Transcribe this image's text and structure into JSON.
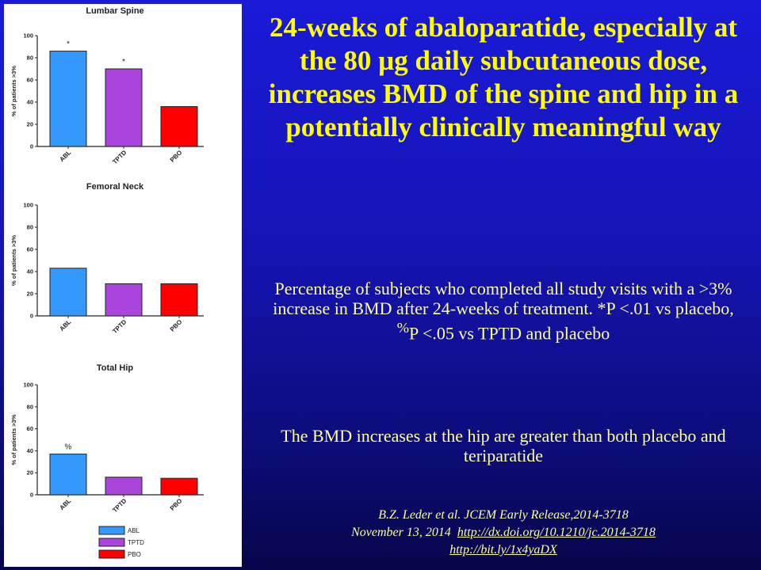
{
  "slide": {
    "title": "24-weeks of abaloparatide, especially at the 80 µg daily subcutaneous dose, increases BMD of the spine and hip in a potentially clinically meaningful way",
    "caption_part1": "Percentage of subjects who completed all study visits with a >3% increase in BMD after 24-weeks of treatment. *P <.01 vs placebo, ",
    "caption_sup": "%",
    "caption_part2": "P <.05 vs TPTD and placebo",
    "conclusion": "The BMD increases at the hip are greater than both placebo and teriparatide",
    "citation_line1": "B.Z. Leder et al. JCEM Early Release,2014-3718",
    "citation_line2_prefix": "November 13, 2014",
    "doi_link": "http://dx.doi.org/10.1210/jc.2014-3718",
    "short_link": "http://bit.ly/1x4yaDX"
  },
  "chart_data": [
    {
      "type": "bar",
      "title": "Lumbar Spine",
      "ylabel": "% of patients >3%",
      "categories": [
        "ABL",
        "TPTD",
        "PBO"
      ],
      "values": [
        86,
        70,
        36
      ],
      "annotations": [
        "*",
        "*",
        ""
      ],
      "ylim": [
        0,
        100
      ],
      "yticks": [
        "0",
        "20",
        "40",
        "60",
        "80",
        "100"
      ]
    },
    {
      "type": "bar",
      "title": "Femoral  Neck",
      "ylabel": "% of patients >3%",
      "categories": [
        "ABL",
        "TPTD",
        "PBO"
      ],
      "values": [
        43,
        29,
        29
      ],
      "annotations": [
        "",
        "",
        ""
      ],
      "ylim": [
        0,
        100
      ],
      "yticks": [
        "0",
        "20",
        "40",
        "60",
        "80",
        "100"
      ]
    },
    {
      "type": "bar",
      "title": "Total Hip",
      "ylabel": "% of patients >3%",
      "categories": [
        "ABL",
        "TPTD",
        "PBO"
      ],
      "values": [
        37,
        16,
        15
      ],
      "annotations": [
        "%",
        "",
        ""
      ],
      "ylim": [
        0,
        100
      ],
      "yticks": [
        "0",
        "20",
        "40",
        "60",
        "80",
        "100"
      ]
    }
  ],
  "legend": {
    "entries": [
      {
        "label": "ABL",
        "color": "#3399ff"
      },
      {
        "label": "TPTD",
        "color": "#aa44dd"
      },
      {
        "label": "PBO",
        "color": "#ff0000"
      }
    ]
  }
}
